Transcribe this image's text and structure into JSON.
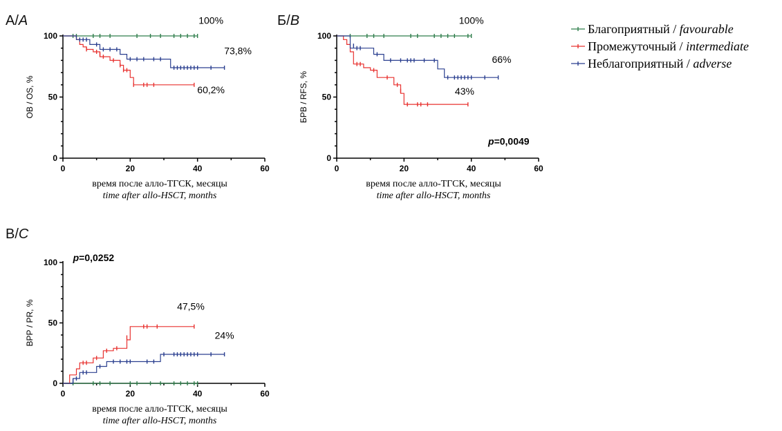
{
  "legend": {
    "items": [
      {
        "ru": "Благоприятный / ",
        "en": "favourable",
        "color": "#2e7d4a"
      },
      {
        "ru": "Промежуточный / ",
        "en": "intermediate",
        "color": "#e8312f"
      },
      {
        "ru": "Неблагоприятный / ",
        "en": "adverse",
        "color": "#2a3f8f"
      }
    ]
  },
  "chart_data": [
    {
      "type": "line",
      "step": true,
      "panel_label": {
        "text": "А/",
        "italic": "A"
      },
      "ylabel": "ОВ / OS, %",
      "xlabel_ru": "время после алло-ТГСК, месяцы",
      "xlabel_en": "time after allo-HSCT, months",
      "xlim": [
        0,
        60
      ],
      "ylim": [
        0,
        100
      ],
      "xticks": [
        0,
        20,
        40,
        60
      ],
      "yticks": [
        0,
        50,
        100
      ],
      "pvalue": null,
      "annotations": [
        {
          "text": "100%",
          "x": 44,
          "y": 110
        },
        {
          "text": "73,8%",
          "x": 52,
          "y": 85
        },
        {
          "text": "60,2%",
          "x": 44,
          "y": 53
        }
      ],
      "series": [
        {
          "name": "Благоприятный / favourable",
          "color": "#2e7d4a",
          "points": [
            [
              0,
              100
            ],
            [
              40,
              100
            ]
          ],
          "censor": [
            [
              3,
              100
            ],
            [
              4,
              100
            ],
            [
              9,
              100
            ],
            [
              11,
              100
            ],
            [
              14,
              100
            ],
            [
              22,
              100
            ],
            [
              26,
              100
            ],
            [
              29,
              100
            ],
            [
              33,
              100
            ],
            [
              35,
              100
            ],
            [
              37,
              100
            ],
            [
              39,
              100
            ],
            [
              40,
              100
            ]
          ]
        },
        {
          "name": "Промежуточный / intermediate",
          "color": "#e8312f",
          "points": [
            [
              0,
              100
            ],
            [
              4,
              100
            ],
            [
              4,
              97
            ],
            [
              5,
              97
            ],
            [
              5,
              93
            ],
            [
              6,
              93
            ],
            [
              6,
              91
            ],
            [
              7,
              91
            ],
            [
              7,
              89
            ],
            [
              9,
              89
            ],
            [
              9,
              87
            ],
            [
              11,
              87
            ],
            [
              11,
              83
            ],
            [
              14,
              83
            ],
            [
              14,
              80
            ],
            [
              17,
              80
            ],
            [
              17,
              76
            ],
            [
              18,
              76
            ],
            [
              18,
              72
            ],
            [
              20,
              72
            ],
            [
              20,
              66
            ],
            [
              21,
              66
            ],
            [
              21,
              60
            ],
            [
              39,
              60
            ]
          ],
          "censor": [
            [
              7,
              89
            ],
            [
              10,
              87
            ],
            [
              11,
              85
            ],
            [
              12,
              83
            ],
            [
              15,
              80
            ],
            [
              17,
              76
            ],
            [
              18,
              72
            ],
            [
              19,
              72
            ],
            [
              21,
              60
            ],
            [
              24,
              60
            ],
            [
              25,
              60
            ],
            [
              27,
              60
            ],
            [
              39,
              60
            ]
          ]
        },
        {
          "name": "Неблагоприятный / adverse",
          "color": "#2a3f8f",
          "points": [
            [
              0,
              100
            ],
            [
              4,
              100
            ],
            [
              4,
              97
            ],
            [
              8,
              97
            ],
            [
              8,
              93
            ],
            [
              11,
              93
            ],
            [
              11,
              89
            ],
            [
              17,
              89
            ],
            [
              17,
              85
            ],
            [
              19,
              85
            ],
            [
              19,
              81
            ],
            [
              32,
              81
            ],
            [
              32,
              74
            ],
            [
              48,
              74
            ]
          ],
          "censor": [
            [
              5,
              97
            ],
            [
              6,
              97
            ],
            [
              7,
              97
            ],
            [
              10,
              93
            ],
            [
              12,
              89
            ],
            [
              14,
              89
            ],
            [
              16,
              89
            ],
            [
              20,
              81
            ],
            [
              22,
              81
            ],
            [
              24,
              81
            ],
            [
              27,
              81
            ],
            [
              29,
              81
            ],
            [
              33,
              74
            ],
            [
              34,
              74
            ],
            [
              35,
              74
            ],
            [
              36,
              74
            ],
            [
              37,
              74
            ],
            [
              38,
              74
            ],
            [
              39,
              74
            ],
            [
              40,
              74
            ],
            [
              44,
              74
            ],
            [
              48,
              74
            ]
          ]
        }
      ]
    },
    {
      "type": "line",
      "step": true,
      "panel_label": {
        "text": "Б/",
        "italic": "B"
      },
      "ylabel": "БРВ / RFS, %",
      "xlabel_ru": "время после алло-ТГСК, месяцы",
      "xlabel_en": "time after allo-HSCT, months",
      "xlim": [
        0,
        60
      ],
      "ylim": [
        0,
        100
      ],
      "xticks": [
        0,
        20,
        40,
        60
      ],
      "yticks": [
        0,
        50,
        100
      ],
      "pvalue": {
        "p": "p",
        "value": "=0,0049",
        "x": 45,
        "y": 10
      },
      "annotations": [
        {
          "text": "100%",
          "x": 40,
          "y": 110
        },
        {
          "text": "66%",
          "x": 49,
          "y": 78
        },
        {
          "text": "43%",
          "x": 38,
          "y": 52
        }
      ],
      "series": [
        {
          "name": "Благоприятный / favourable",
          "color": "#2e7d4a",
          "points": [
            [
              0,
              100
            ],
            [
              40,
              100
            ]
          ],
          "censor": [
            [
              4,
              100
            ],
            [
              9,
              100
            ],
            [
              11,
              100
            ],
            [
              14,
              100
            ],
            [
              22,
              100
            ],
            [
              24,
              100
            ],
            [
              29,
              100
            ],
            [
              31,
              100
            ],
            [
              33,
              100
            ],
            [
              35,
              100
            ],
            [
              39,
              100
            ],
            [
              40,
              100
            ]
          ]
        },
        {
          "name": "Промежуточный / intermediate",
          "color": "#e8312f",
          "points": [
            [
              0,
              100
            ],
            [
              2,
              100
            ],
            [
              2,
              97
            ],
            [
              3,
              97
            ],
            [
              3,
              93
            ],
            [
              4,
              93
            ],
            [
              4,
              87
            ],
            [
              5,
              87
            ],
            [
              5,
              77
            ],
            [
              8,
              77
            ],
            [
              8,
              74
            ],
            [
              10,
              74
            ],
            [
              10,
              72
            ],
            [
              12,
              72
            ],
            [
              12,
              66
            ],
            [
              17,
              66
            ],
            [
              17,
              60
            ],
            [
              19,
              60
            ],
            [
              19,
              53
            ],
            [
              20,
              53
            ],
            [
              20,
              44
            ],
            [
              39,
              44
            ]
          ],
          "censor": [
            [
              6,
              77
            ],
            [
              7,
              77
            ],
            [
              11,
              72
            ],
            [
              15,
              66
            ],
            [
              18,
              60
            ],
            [
              19,
              55
            ],
            [
              21,
              44
            ],
            [
              24,
              44
            ],
            [
              25,
              44
            ],
            [
              27,
              44
            ],
            [
              39,
              44
            ]
          ]
        },
        {
          "name": "Неблагоприятный / adverse",
          "color": "#2a3f8f",
          "points": [
            [
              0,
              100
            ],
            [
              4,
              100
            ],
            [
              4,
              90
            ],
            [
              11,
              90
            ],
            [
              11,
              85
            ],
            [
              14,
              85
            ],
            [
              14,
              80
            ],
            [
              30,
              80
            ],
            [
              30,
              73
            ],
            [
              32,
              73
            ],
            [
              32,
              66
            ],
            [
              48,
              66
            ]
          ],
          "censor": [
            [
              5,
              92
            ],
            [
              6,
              90
            ],
            [
              7,
              90
            ],
            [
              12,
              85
            ],
            [
              16,
              80
            ],
            [
              19,
              80
            ],
            [
              21,
              80
            ],
            [
              22,
              80
            ],
            [
              23,
              80
            ],
            [
              26,
              80
            ],
            [
              29,
              80
            ],
            [
              33,
              66
            ],
            [
              35,
              66
            ],
            [
              36,
              66
            ],
            [
              37,
              66
            ],
            [
              38,
              66
            ],
            [
              39,
              66
            ],
            [
              40,
              66
            ],
            [
              44,
              66
            ],
            [
              48,
              66
            ]
          ]
        }
      ]
    },
    {
      "type": "line",
      "step": true,
      "panel_label": {
        "text": "В/",
        "italic": "C"
      },
      "ylabel": "ВРР / PR, %",
      "xlabel_ru": "время после алло-ТГСК, месяцы",
      "xlabel_en": "time after allo-HSCT, months",
      "xlim": [
        0,
        60
      ],
      "ylim": [
        0,
        100
      ],
      "xticks": [
        0,
        20,
        40,
        60
      ],
      "yticks": [
        0,
        50,
        100
      ],
      "pvalue": {
        "p": "p",
        "value": "=0,0252",
        "x": 3,
        "y": 100
      },
      "annotations": [
        {
          "text": "47,5%",
          "x": 38,
          "y": 61
        },
        {
          "text": "24%",
          "x": 48,
          "y": 37
        }
      ],
      "series": [
        {
          "name": "Благоприятный / favourable",
          "color": "#2e7d4a",
          "points": [
            [
              0,
              0
            ],
            [
              40,
              0
            ]
          ],
          "censor": [
            [
              3,
              0
            ],
            [
              9,
              0
            ],
            [
              11,
              0
            ],
            [
              14,
              0
            ],
            [
              20,
              0
            ],
            [
              22,
              0
            ],
            [
              26,
              0
            ],
            [
              29,
              0
            ],
            [
              33,
              0
            ],
            [
              35,
              0
            ],
            [
              37,
              0
            ],
            [
              39,
              0
            ],
            [
              40,
              0
            ]
          ]
        },
        {
          "name": "Промежуточный / intermediate",
          "color": "#e8312f",
          "points": [
            [
              0,
              0
            ],
            [
              2,
              0
            ],
            [
              2,
              7
            ],
            [
              4,
              7
            ],
            [
              4,
              12
            ],
            [
              5,
              12
            ],
            [
              5,
              17
            ],
            [
              9,
              17
            ],
            [
              9,
              21
            ],
            [
              12,
              21
            ],
            [
              12,
              27
            ],
            [
              15,
              27
            ],
            [
              15,
              29
            ],
            [
              19,
              29
            ],
            [
              19,
              36
            ],
            [
              20,
              36
            ],
            [
              20,
              47
            ],
            [
              39,
              47
            ]
          ],
          "censor": [
            [
              6,
              17
            ],
            [
              7,
              17
            ],
            [
              10,
              21
            ],
            [
              13,
              27
            ],
            [
              16,
              29
            ],
            [
              19,
              38
            ],
            [
              24,
              47
            ],
            [
              25,
              47
            ],
            [
              28,
              47
            ],
            [
              39,
              47
            ]
          ]
        },
        {
          "name": "Неблагоприятный / adverse",
          "color": "#2a3f8f",
          "points": [
            [
              0,
              0
            ],
            [
              3,
              0
            ],
            [
              3,
              4
            ],
            [
              5,
              4
            ],
            [
              5,
              9
            ],
            [
              10,
              9
            ],
            [
              10,
              14
            ],
            [
              13,
              14
            ],
            [
              13,
              18
            ],
            [
              29,
              18
            ],
            [
              29,
              24
            ],
            [
              48,
              24
            ]
          ],
          "censor": [
            [
              3,
              2
            ],
            [
              4,
              4
            ],
            [
              6,
              9
            ],
            [
              7,
              9
            ],
            [
              11,
              14
            ],
            [
              15,
              18
            ],
            [
              17,
              18
            ],
            [
              19,
              18
            ],
            [
              20,
              18
            ],
            [
              25,
              18
            ],
            [
              27,
              18
            ],
            [
              30,
              24
            ],
            [
              33,
              24
            ],
            [
              34,
              24
            ],
            [
              35,
              24
            ],
            [
              36,
              24
            ],
            [
              37,
              24
            ],
            [
              38,
              24
            ],
            [
              39,
              24
            ],
            [
              40,
              24
            ],
            [
              44,
              24
            ],
            [
              48,
              24
            ]
          ]
        }
      ]
    }
  ]
}
